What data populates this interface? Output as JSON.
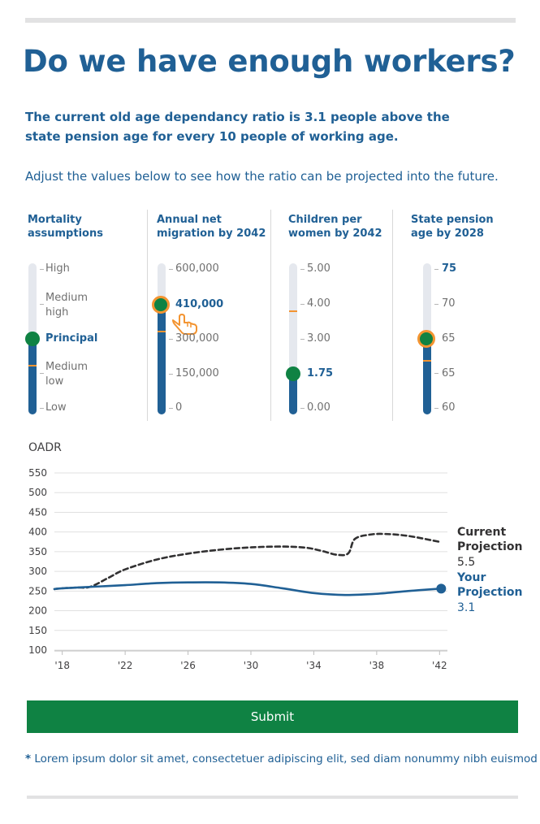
{
  "title": "Do we have enough workers?",
  "intro": "The current old age dependancy ratio is 3.1 people above the state pension age for every 10 people of working age.",
  "hint": "Adjust the values below to see how the ratio can be projected into the future.",
  "controls": {
    "mortality": {
      "title_line1": "Mortality",
      "title_line2": "assumptions",
      "options": [
        "High",
        "Medium high",
        "Principal",
        "Medium low",
        "Low"
      ],
      "labels": {
        "high": "High",
        "medium_high_1": "Medium",
        "medium_high_2": "high",
        "principal": "Principal",
        "medium_low_1": "Medium",
        "medium_low_2": "low",
        "low": "Low"
      },
      "selected": "Principal"
    },
    "migration": {
      "title_line1": "Annual net",
      "title_line2": "migration by 2042",
      "ticks": [
        "600,000",
        "300,000",
        "150,000",
        "0"
      ],
      "selected_label": "410,000",
      "value": 410000,
      "max": 600000
    },
    "children": {
      "title_line1": "Children per",
      "title_line2": "women by 2042",
      "ticks": [
        "5.00",
        "4.00",
        "3.00",
        "0.00"
      ],
      "selected_label": "1.75",
      "value": 1.75,
      "max": 5
    },
    "pension": {
      "title_line1": "State pension",
      "title_line2": "age by 2028",
      "ticks": [
        "75",
        "70",
        "65",
        "65",
        "60"
      ],
      "selected_label": "65"
    }
  },
  "chart_label": "OADR",
  "chart_data": {
    "type": "line",
    "ylabel": "OADR",
    "ylim": [
      100,
      550
    ],
    "yticks": [
      100,
      150,
      200,
      250,
      300,
      350,
      400,
      450,
      500,
      550
    ],
    "xlim": [
      2017.5,
      2042.5
    ],
    "xtick_labels": [
      "'18",
      "'22",
      "'26",
      "'30",
      "'34",
      "'38",
      "'42"
    ],
    "xtick_values": [
      2018,
      2022,
      2026,
      2030,
      2034,
      2038,
      2042
    ],
    "grid": true,
    "series": [
      {
        "name": "Current Projection",
        "end_label": "5.5",
        "style": "dashed",
        "color": "#323132",
        "x": [
          2017.5,
          2018,
          2019,
          2019.8,
          2021,
          2022,
          2024,
          2026,
          2028,
          2030,
          2032,
          2033.5,
          2034.5,
          2035.5,
          2036.2,
          2036.6,
          2037.5,
          2038.5,
          2040,
          2042
        ],
        "y": [
          255,
          257,
          259,
          261,
          285,
          305,
          330,
          345,
          355,
          361,
          363,
          360,
          352,
          342,
          346,
          382,
          393,
          395,
          390,
          375
        ]
      },
      {
        "name": "Your Projection",
        "end_label": "3.1",
        "style": "solid",
        "color": "#206095",
        "x": [
          2017.5,
          2018,
          2020,
          2022,
          2024,
          2026,
          2028,
          2030,
          2032,
          2034,
          2036,
          2038,
          2040,
          2042
        ],
        "y": [
          255,
          257,
          261,
          265,
          270,
          272,
          272,
          268,
          257,
          245,
          240,
          243,
          250,
          256
        ]
      }
    ]
  },
  "legend": {
    "current": {
      "line1": "Current",
      "line2": "Projection",
      "value": "5.5"
    },
    "yours": {
      "line1": "Your",
      "line2": "Projection",
      "value": "3.1"
    }
  },
  "submit_label": "Submit",
  "footnote": {
    "star": "*",
    "text": " Lorem ipsum dolor sit amet, consectetuer adipiscing elit, sed diam nonummy nibh euismod"
  },
  "colors": {
    "brand_blue": "#206095",
    "green": "#0f8243",
    "orange": "#f39431",
    "dark": "#323132"
  }
}
